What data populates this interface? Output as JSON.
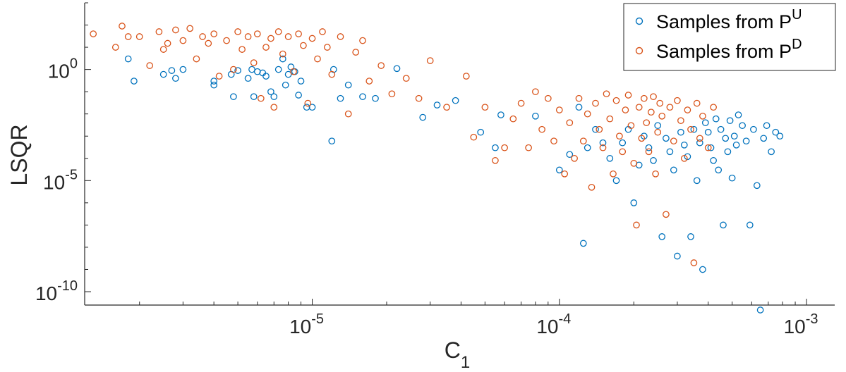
{
  "chart_data": {
    "type": "scatter",
    "title": "",
    "xlabel": "C",
    "xlabel_sub": "1",
    "ylabel": "LSQR",
    "xscale": "log",
    "yscale": "log",
    "xlim": [
      1.2e-06,
      0.0013
    ],
    "ylim": [
      2.5e-11,
      1000
    ],
    "xticks": [
      {
        "value": 1e-05,
        "base": "10",
        "exp": "-5"
      },
      {
        "value": 0.0001,
        "base": "10",
        "exp": "-4"
      },
      {
        "value": 0.001,
        "base": "10",
        "exp": "-3"
      }
    ],
    "yticks": [
      {
        "value": 1.0,
        "base": "10",
        "exp": "0"
      },
      {
        "value": 1e-05,
        "base": "10",
        "exp": "-5"
      },
      {
        "value": 1e-10,
        "base": "10",
        "exp": "-10"
      }
    ],
    "grid": false,
    "legend_position": "top-right",
    "legend": [
      {
        "series": 0,
        "label": "Samples from P",
        "sup": "U"
      },
      {
        "series": 1,
        "label": "Samples from P",
        "sup": "D"
      }
    ],
    "series": [
      {
        "color": "#0072BD",
        "marker": "circle-open",
        "points": [
          [
            1.8e-06,
            3
          ],
          [
            1.9e-06,
            0.3
          ],
          [
            2.5e-06,
            0.6
          ],
          [
            2.7e-06,
            0.9
          ],
          [
            2.8e-06,
            0.4
          ],
          [
            3e-06,
            1.0
          ],
          [
            4e-06,
            0.2
          ],
          [
            4e-06,
            0.3
          ],
          [
            4.7e-06,
            0.6
          ],
          [
            4.8e-06,
            0.06
          ],
          [
            5e-06,
            0.9
          ],
          [
            5.5e-06,
            0.4
          ],
          [
            5.7e-06,
            1.0
          ],
          [
            5.8e-06,
            0.06
          ],
          [
            6e-06,
            0.8
          ],
          [
            6.3e-06,
            0.7
          ],
          [
            6.5e-06,
            0.5
          ],
          [
            6.8e-06,
            0.1
          ],
          [
            7e-06,
            0.06
          ],
          [
            7.3e-06,
            1.0
          ],
          [
            7.6e-06,
            3
          ],
          [
            7.8e-06,
            0.2
          ],
          [
            8e-06,
            0.6
          ],
          [
            8.2e-06,
            1.3
          ],
          [
            8.5e-06,
            0.8
          ],
          [
            8.8e-06,
            0.07
          ],
          [
            9e-06,
            0.3
          ],
          [
            9.5e-06,
            0.02
          ],
          [
            1e-05,
            0.02
          ],
          [
            1.2e-05,
            0.0006
          ],
          [
            1.22e-05,
            1.0
          ],
          [
            1.3e-05,
            0.05
          ],
          [
            1.4e-05,
            0.2
          ],
          [
            1.6e-05,
            0.06
          ],
          [
            1.8e-05,
            0.05
          ],
          [
            2.2e-05,
            1.1
          ],
          [
            2.8e-05,
            0.007
          ],
          [
            3.2e-05,
            0.025
          ],
          [
            3.8e-05,
            0.04
          ],
          [
            4.8e-05,
            0.0015
          ],
          [
            5.5e-05,
            0.0003
          ],
          [
            5.8e-05,
            0.009
          ],
          [
            8e-05,
            0.008
          ],
          [
            0.0001,
            3e-05
          ],
          [
            0.00011,
            0.00015
          ],
          [
            0.00012,
            0.02
          ],
          [
            0.000125,
            1.5e-08
          ],
          [
            0.00013,
            0.0003
          ],
          [
            0.00014,
            0.002
          ],
          [
            0.00015,
            0.0005
          ],
          [
            0.00016,
            0.0001
          ],
          [
            0.00017,
            1e-05
          ],
          [
            0.00018,
            0.0005
          ],
          [
            0.00019,
            0.002
          ],
          [
            0.0002,
            1e-06
          ],
          [
            0.00021,
            5e-05
          ],
          [
            0.00022,
            0.001
          ],
          [
            0.00023,
            0.0003
          ],
          [
            0.00024,
            8e-05
          ],
          [
            0.00025,
            0.003
          ],
          [
            0.00026,
            3e-08
          ],
          [
            0.00027,
            0.0008
          ],
          [
            0.00028,
            0.0002
          ],
          [
            0.00029,
            3e-05
          ],
          [
            0.0003,
            4e-09
          ],
          [
            0.00031,
            0.0015
          ],
          [
            0.00032,
            0.0004
          ],
          [
            0.00033,
            0.00012
          ],
          [
            0.00034,
            3e-08
          ],
          [
            0.00035,
            0.002
          ],
          [
            0.00036,
            1e-05
          ],
          [
            0.00037,
            0.0005
          ],
          [
            0.00038,
            1e-09
          ],
          [
            0.00039,
            0.004
          ],
          [
            0.0004,
            0.0015
          ],
          [
            0.00041,
            0.0003
          ],
          [
            0.00042,
            8e-05
          ],
          [
            0.00043,
            0.006
          ],
          [
            0.00044,
            3e-05
          ],
          [
            0.00045,
            0.002
          ],
          [
            0.00046,
            1e-07
          ],
          [
            0.00047,
            0.0008
          ],
          [
            0.00048,
            0.0002
          ],
          [
            0.00049,
            0.005
          ],
          [
            0.0005,
            1.3e-05
          ],
          [
            0.00051,
            0.001
          ],
          [
            0.00052,
            0.0004
          ],
          [
            0.00053,
            0.009
          ],
          [
            0.00055,
            0.003
          ],
          [
            0.00057,
            0.0006
          ],
          [
            0.00059,
            1e-07
          ],
          [
            0.00061,
            0.002
          ],
          [
            0.00063,
            6e-06
          ],
          [
            0.00065,
            1.5e-11
          ],
          [
            0.00067,
            0.0008
          ],
          [
            0.00069,
            0.003
          ],
          [
            0.00072,
            0.0002
          ],
          [
            0.00075,
            0.0015
          ],
          [
            0.00078,
            0.001
          ]
        ]
      },
      {
        "color": "#D95319",
        "marker": "circle-open",
        "points": [
          [
            1.3e-06,
            40
          ],
          [
            1.6e-06,
            10
          ],
          [
            1.7e-06,
            90
          ],
          [
            1.8e-06,
            30
          ],
          [
            2e-06,
            30
          ],
          [
            2.2e-06,
            1.5
          ],
          [
            2.4e-06,
            50
          ],
          [
            2.5e-06,
            8
          ],
          [
            2.6e-06,
            15
          ],
          [
            2.8e-06,
            60
          ],
          [
            3e-06,
            20
          ],
          [
            3.2e-06,
            70
          ],
          [
            3.4e-06,
            3
          ],
          [
            3.6e-06,
            30
          ],
          [
            3.8e-06,
            15
          ],
          [
            4e-06,
            40
          ],
          [
            4.2e-06,
            0.5
          ],
          [
            4.5e-06,
            20
          ],
          [
            4.8e-06,
            1
          ],
          [
            5e-06,
            50
          ],
          [
            5.2e-06,
            8
          ],
          [
            5.5e-06,
            30
          ],
          [
            5.8e-06,
            2
          ],
          [
            6e-06,
            40
          ],
          [
            6.2e-06,
            0.05
          ],
          [
            6.5e-06,
            10
          ],
          [
            6.8e-06,
            25
          ],
          [
            7e-06,
            0.02
          ],
          [
            7.3e-06,
            50
          ],
          [
            7.6e-06,
            5
          ],
          [
            8e-06,
            30
          ],
          [
            8.4e-06,
            0.8
          ],
          [
            8.8e-06,
            40
          ],
          [
            9.2e-06,
            12
          ],
          [
            9.6e-06,
            0.03
          ],
          [
            1e-05,
            25
          ],
          [
            1.05e-05,
            3
          ],
          [
            1.1e-05,
            50
          ],
          [
            1.15e-05,
            10
          ],
          [
            1.2e-05,
            0.6
          ],
          [
            1.3e-05,
            30
          ],
          [
            1.4e-05,
            0.01
          ],
          [
            1.5e-05,
            6
          ],
          [
            1.6e-05,
            20
          ],
          [
            1.7e-05,
            0.3
          ],
          [
            1.9e-05,
            1.5
          ],
          [
            2.1e-05,
            0.08
          ],
          [
            2.4e-05,
            0.4
          ],
          [
            2.7e-05,
            0.05
          ],
          [
            3e-05,
            2.5
          ],
          [
            3.5e-05,
            0.02
          ],
          [
            4.2e-05,
            0.5
          ],
          [
            4.5e-05,
            0.0009
          ],
          [
            5e-05,
            0.02
          ],
          [
            5.5e-05,
            8e-05
          ],
          [
            6e-05,
            0.0003
          ],
          [
            6.5e-05,
            0.006
          ],
          [
            7e-05,
            0.03
          ],
          [
            7.5e-05,
            0.0003
          ],
          [
            8e-05,
            0.1
          ],
          [
            8.5e-05,
            0.002
          ],
          [
            9e-05,
            0.05
          ],
          [
            9.5e-05,
            0.0006
          ],
          [
            0.0001,
            0.015
          ],
          [
            0.000105,
            2e-05
          ],
          [
            0.00011,
            0.004
          ],
          [
            0.000115,
            0.0001
          ],
          [
            0.00012,
            0.05
          ],
          [
            0.000125,
            0.0006
          ],
          [
            0.00013,
            0.01
          ],
          [
            0.000135,
            5e-06
          ],
          [
            0.00014,
            0.03
          ],
          [
            0.000145,
            0.002
          ],
          [
            0.00015,
            0.0003
          ],
          [
            0.000155,
            0.08
          ],
          [
            0.00016,
            0.006
          ],
          [
            0.000165,
            2e-05
          ],
          [
            0.00017,
            0.04
          ],
          [
            0.000175,
            0.001
          ],
          [
            0.00018,
            0.0002
          ],
          [
            0.000185,
            0.015
          ],
          [
            0.00019,
            0.07
          ],
          [
            0.000195,
            0.003
          ],
          [
            0.0002,
            6e-05
          ],
          [
            0.000205,
            1e-07
          ],
          [
            0.00021,
            0.02
          ],
          [
            0.000215,
            0.0008
          ],
          [
            0.00022,
            0.05
          ],
          [
            0.000225,
            0.004
          ],
          [
            0.00023,
            0.0002
          ],
          [
            0.000235,
            0.012
          ],
          [
            0.00024,
            0.06
          ],
          [
            0.000245,
            2e-05
          ],
          [
            0.00025,
            0.0015
          ],
          [
            0.000255,
            0.03
          ],
          [
            0.00026,
            0.008
          ],
          [
            0.00027,
            3e-07
          ],
          [
            0.00028,
            0.02
          ],
          [
            0.00029,
            0.0006
          ],
          [
            0.0003,
            0.04
          ],
          [
            0.00031,
            0.005
          ],
          [
            0.00032,
            0.0001
          ],
          [
            0.00033,
            0.015
          ],
          [
            0.00034,
            0.002
          ],
          [
            0.00035,
            2e-09
          ],
          [
            0.00036,
            0.03
          ],
          [
            0.00037,
            0.0008
          ],
          [
            0.00038,
            0.008
          ],
          [
            0.0004,
            0.0003
          ],
          [
            0.00042,
            0.02
          ]
        ]
      }
    ]
  }
}
